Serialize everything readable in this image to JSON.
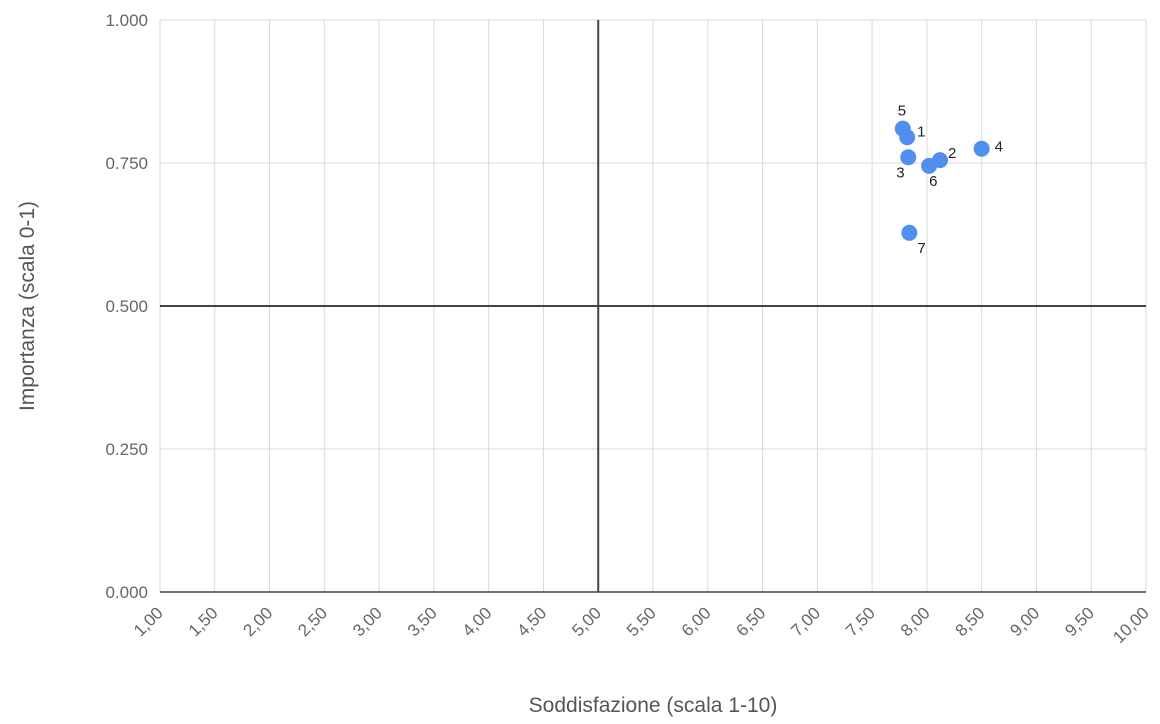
{
  "chart_data": {
    "type": "scatter",
    "title": "",
    "xlabel": "Soddisfazione (scala 1-10)",
    "ylabel": "Importanza (scala 0-1)",
    "xlim": [
      1.0,
      10.0
    ],
    "ylim": [
      0.0,
      1.0
    ],
    "x_ticks": [
      "1,00",
      "1,50",
      "2,00",
      "2,50",
      "3,00",
      "3,50",
      "4,00",
      "4,50",
      "5,00",
      "5,50",
      "6,00",
      "6,50",
      "7,00",
      "7,50",
      "8,00",
      "8,50",
      "9,00",
      "9,50",
      "10,00"
    ],
    "x_tick_values": [
      1.0,
      1.5,
      2.0,
      2.5,
      3.0,
      3.5,
      4.0,
      4.5,
      5.0,
      5.5,
      6.0,
      6.5,
      7.0,
      7.5,
      8.0,
      8.5,
      9.0,
      9.5,
      10.0
    ],
    "y_ticks": [
      "0.000",
      "0.250",
      "0.500",
      "0.750",
      "1.000"
    ],
    "y_tick_values": [
      0.0,
      0.25,
      0.5,
      0.75,
      1.0
    ],
    "grid": true,
    "quadrant_lines": {
      "x": 5.0,
      "y": 0.5
    },
    "point_color": "#4f8ff0",
    "points": [
      {
        "label": "1",
        "x": 7.82,
        "y": 0.795
      },
      {
        "label": "2",
        "x": 8.12,
        "y": 0.755
      },
      {
        "label": "3",
        "x": 7.83,
        "y": 0.76
      },
      {
        "label": "4",
        "x": 8.5,
        "y": 0.775
      },
      {
        "label": "5",
        "x": 7.78,
        "y": 0.81
      },
      {
        "label": "6",
        "x": 8.02,
        "y": 0.745
      },
      {
        "label": "7",
        "x": 7.84,
        "y": 0.628
      }
    ]
  }
}
